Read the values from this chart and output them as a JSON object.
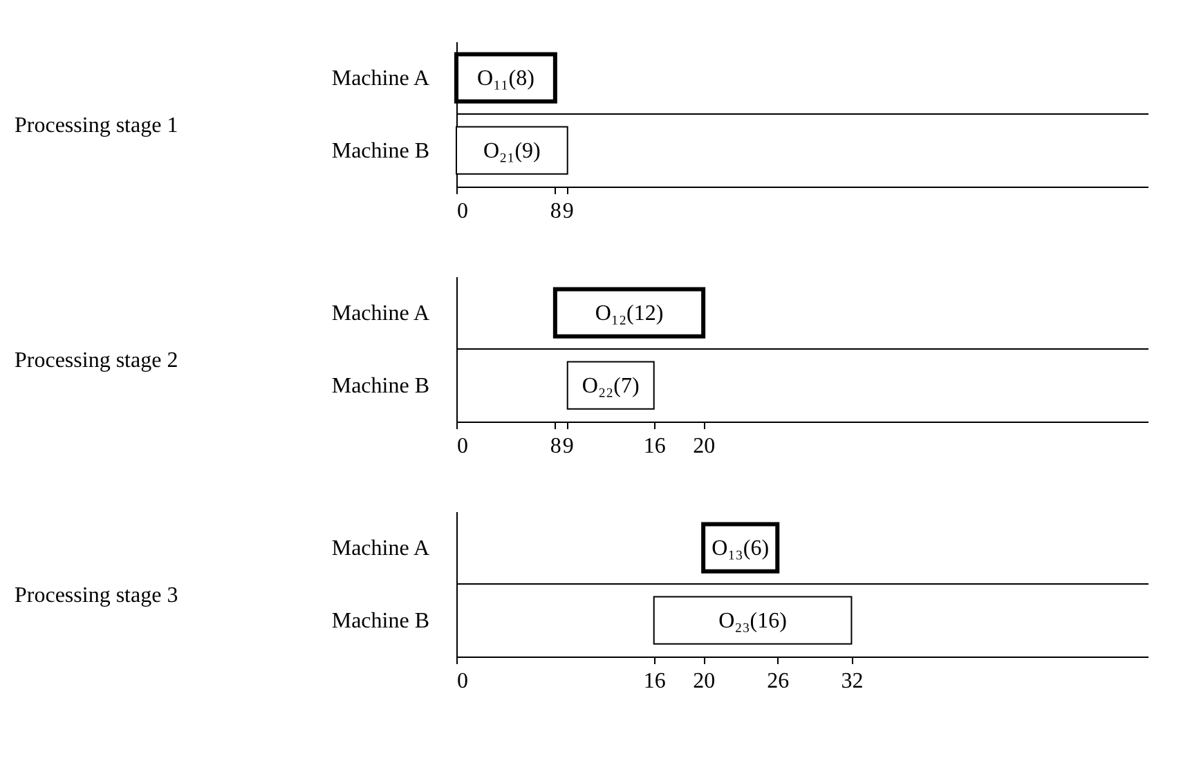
{
  "chart_data": [
    {
      "type": "bar",
      "orientation": "horizontal",
      "ylabel": "Processing stage 1",
      "categories": [
        "Machine A",
        "Machine B"
      ],
      "base": [
        0,
        0
      ],
      "values": [
        8,
        9
      ],
      "colors": [
        "#ffffff",
        "#ffffff"
      ],
      "value_labels": [
        "O₁₁(8)",
        "O₂₁(9)"
      ],
      "xlim": [
        0,
        56
      ],
      "xticks": [
        0,
        8,
        9
      ],
      "grid": "y"
    },
    {
      "type": "bar",
      "orientation": "horizontal",
      "ylabel": "Processing stage 2",
      "categories": [
        "Machine A",
        "Machine B"
      ],
      "base": [
        8,
        9
      ],
      "values": [
        12,
        7
      ],
      "colors": [
        "#ffffff",
        "#ffffff"
      ],
      "value_labels": [
        "O₁₂(12)",
        "O₂₂(7)"
      ],
      "xlim": [
        0,
        56
      ],
      "xticks": [
        0,
        8,
        9,
        16,
        20
      ],
      "grid": "y"
    },
    {
      "type": "bar",
      "orientation": "horizontal",
      "ylabel": "Processing stage 3",
      "categories": [
        "Machine A",
        "Machine B"
      ],
      "base": [
        20,
        16
      ],
      "values": [
        6,
        16
      ],
      "colors": [
        "#ffffff",
        "#ffffff"
      ],
      "value_labels": [
        "O₁₃(6)",
        "O₂₃(16)"
      ],
      "xlim": [
        0,
        56
      ],
      "xticks": [
        0,
        16,
        20,
        26,
        32
      ],
      "grid": "y"
    }
  ]
}
